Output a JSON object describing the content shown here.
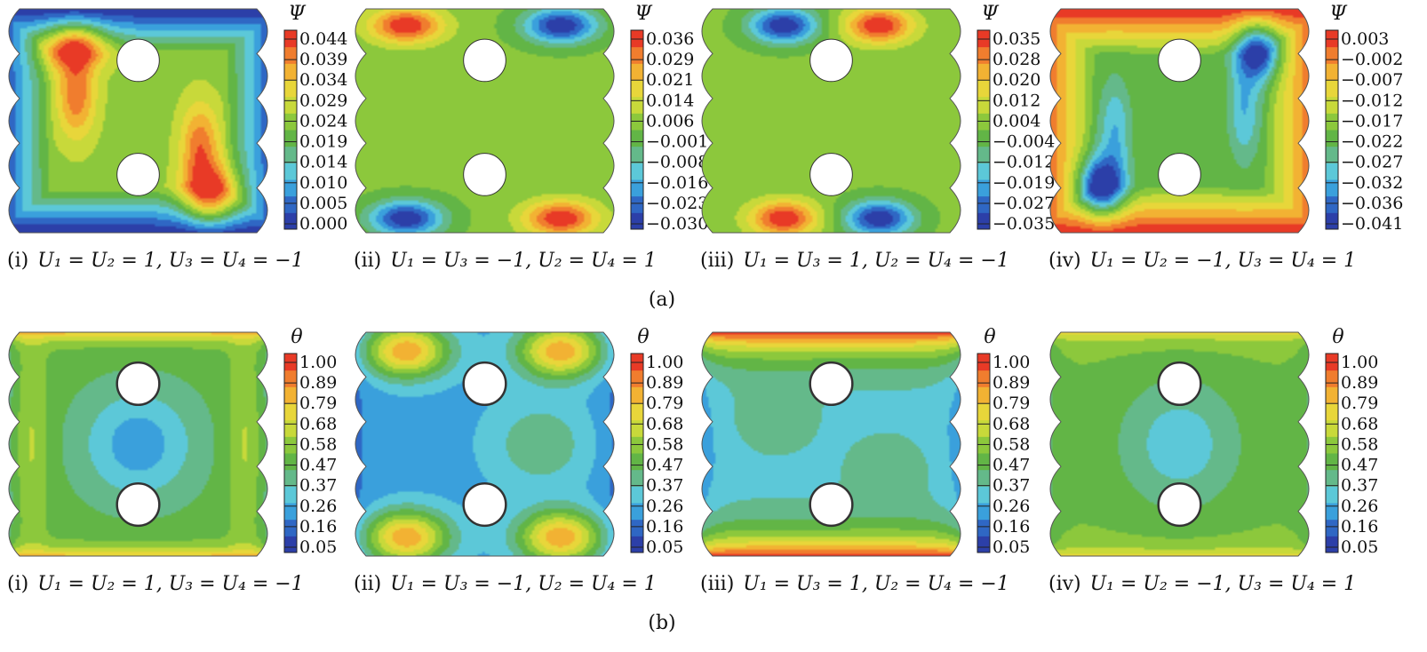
{
  "colors": {
    "scale": [
      "#2c3fa8",
      "#2f67c4",
      "#3aa0dc",
      "#5cc8d8",
      "#64b98a",
      "#62b546",
      "#8cc83c",
      "#c8d93a",
      "#e8d63a",
      "#f2b233",
      "#f07d2e",
      "#e83a26"
    ],
    "hole": "#ffffff",
    "contour": "#2a3d22"
  },
  "rows": [
    {
      "id": "a",
      "label": "(a)",
      "colorbar_title": "Ψ",
      "panels": [
        {
          "id": "i",
          "caption_prefix": "(i)",
          "caption_eq": "U₁ = U₂ = 1,  U₃ = U₄ = −1",
          "ticks": [
            "0.044",
            "0.039",
            "0.034",
            "0.029",
            "0.024",
            "0.019",
            "0.014",
            "0.010",
            "0.005",
            "0.000"
          ],
          "field": "psi1"
        },
        {
          "id": "ii",
          "caption_prefix": "(ii)",
          "caption_eq": "U₁ = U₃ = −1,  U₂ = U₄ = 1",
          "ticks": [
            "0.036",
            "0.029",
            "0.021",
            "0.014",
            "0.006",
            "−0.001",
            "−0.008",
            "−0.016",
            "−0.023",
            "−0.030"
          ],
          "field": "psi2"
        },
        {
          "id": "iii",
          "caption_prefix": "(iii)",
          "caption_eq": "U₁ = U₃ = 1,  U₂ = U₄ = −1",
          "ticks": [
            "0.035",
            "0.028",
            "0.020",
            "0.012",
            "0.004",
            "−0.004",
            "−0.012",
            "−0.019",
            "−0.027",
            "−0.035"
          ],
          "field": "psi3"
        },
        {
          "id": "iv",
          "caption_prefix": "(iv)",
          "caption_eq": "U₁ = U₂ = −1,  U₃ = U₄ = 1",
          "ticks": [
            "0.003",
            "−0.002",
            "−0.007",
            "−0.012",
            "−0.017",
            "−0.022",
            "−0.027",
            "−0.032",
            "−0.036",
            "−0.041"
          ],
          "field": "psi4"
        }
      ]
    },
    {
      "id": "b",
      "label": "(b)",
      "colorbar_title": "θ",
      "panels": [
        {
          "id": "i",
          "caption_prefix": "(i)",
          "caption_eq": "U₁ = U₂ = 1,  U₃ = U₄ = −1",
          "ticks": [
            "1.00",
            "0.89",
            "0.79",
            "0.68",
            "0.58",
            "0.47",
            "0.37",
            "0.26",
            "0.16",
            "0.05"
          ],
          "field": "th1"
        },
        {
          "id": "ii",
          "caption_prefix": "(ii)",
          "caption_eq": "U₁ = U₃ = −1,  U₂ = U₄ = 1",
          "ticks": [
            "1.00",
            "0.89",
            "0.79",
            "0.68",
            "0.58",
            "0.47",
            "0.37",
            "0.26",
            "0.16",
            "0.05"
          ],
          "field": "th2"
        },
        {
          "id": "iii",
          "caption_prefix": "(iii)",
          "caption_eq": "U₁ = U₃ = 1,  U₂ = U₄ = −1",
          "ticks": [
            "1.00",
            "0.89",
            "0.79",
            "0.68",
            "0.58",
            "0.47",
            "0.37",
            "0.26",
            "0.16",
            "0.05"
          ],
          "field": "th3"
        },
        {
          "id": "iv",
          "caption_prefix": "(iv)",
          "caption_eq": "U₁ = U₂ = −1,  U₃ = U₄ = 1",
          "ticks": [
            "1.00",
            "0.89",
            "0.79",
            "0.68",
            "0.58",
            "0.47",
            "0.37",
            "0.26",
            "0.16",
            "0.05"
          ],
          "field": "th4"
        }
      ]
    }
  ]
}
